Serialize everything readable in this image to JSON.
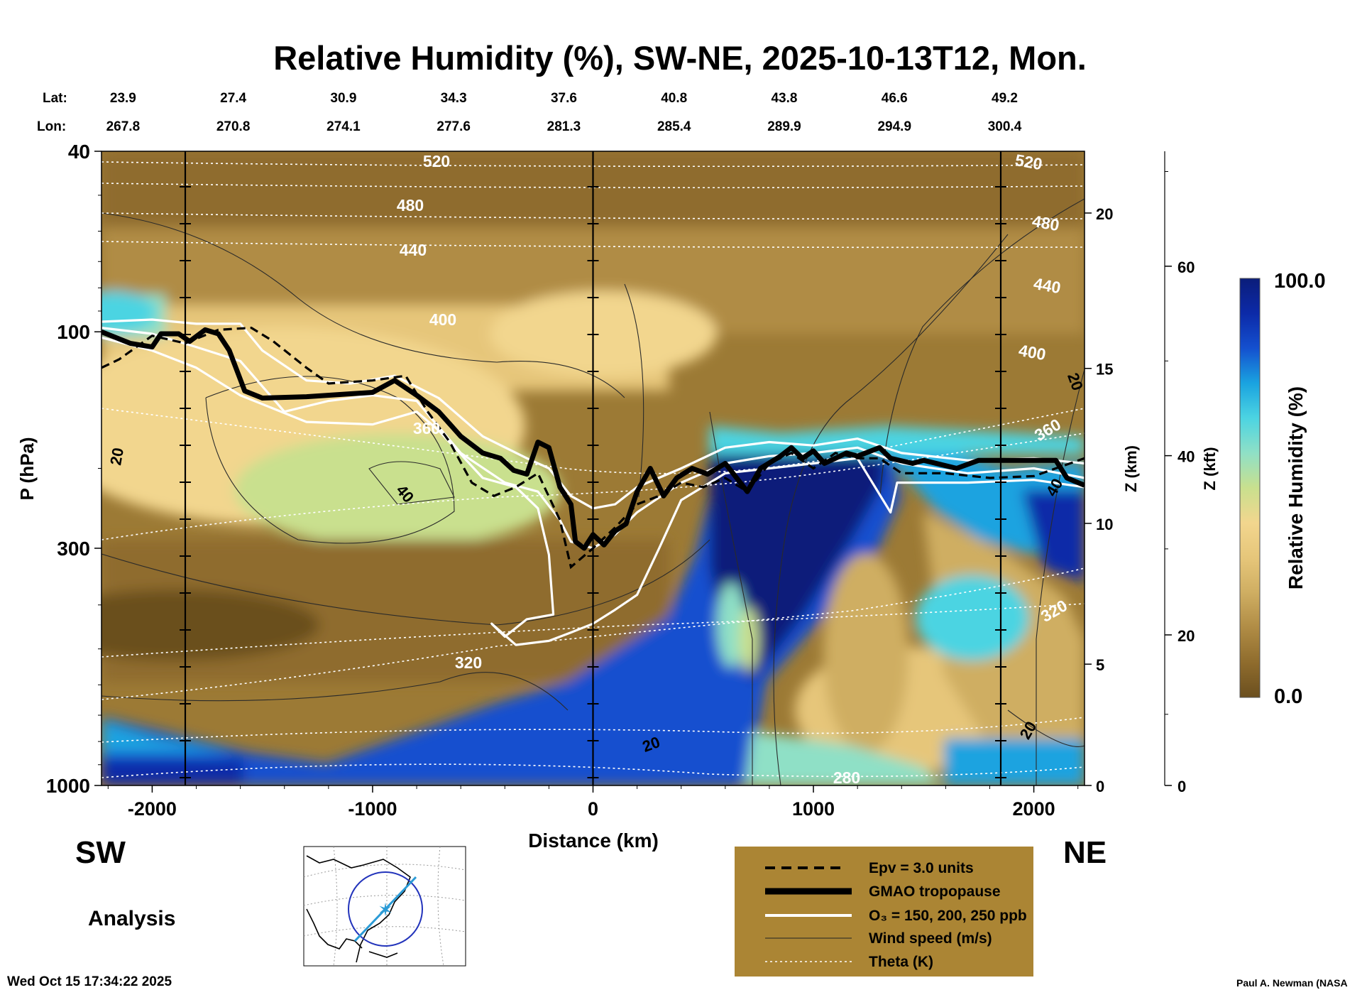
{
  "chart_data": {
    "type": "heatmap",
    "title": "Relative Humidity (%), SW-NE, 2025-10-13T12, Mon.",
    "xlabel": "Distance (km)",
    "ylabel": "P (hPa)",
    "y2label": "Z (km)",
    "y3label": "Z (kft)",
    "colorbar_label": "Relative Humidity (%)",
    "colorbar_max": "100.0",
    "colorbar_min": "0.0",
    "xlim": [
      -2230,
      2230
    ],
    "ylim": [
      1000,
      40
    ],
    "yscale": "log",
    "x_ticks": [
      -2000,
      -1000,
      0,
      1000,
      2000
    ],
    "x_tick_labels": [
      "-2000",
      "-1000",
      "0",
      "1000",
      "2000"
    ],
    "p_ticks": [
      40,
      100,
      300,
      1000
    ],
    "p_tick_labels": [
      "40",
      "100",
      "300",
      "1000"
    ],
    "z_km_ticks": [
      0,
      5,
      10,
      15,
      20
    ],
    "z_km_tick_labels": [
      "0",
      "5",
      "10",
      "15",
      "20"
    ],
    "z_kft_ticks": [
      0,
      20,
      40,
      60
    ],
    "z_kft_tick_labels": [
      "0",
      "20",
      "40",
      "60"
    ],
    "lat_label": "Lat:",
    "lon_label": "Lon:",
    "lat_values": [
      "23.9",
      "27.4",
      "30.9",
      "34.3",
      "37.6",
      "40.8",
      "43.8",
      "46.6",
      "49.2"
    ],
    "lon_values": [
      "267.8",
      "270.8",
      "274.1",
      "277.6",
      "281.3",
      "285.4",
      "289.9",
      "294.9",
      "300.4"
    ],
    "theta_levels": [
      280,
      320,
      360,
      400,
      440,
      480,
      520
    ],
    "theta_labels": [
      "520",
      "480",
      "440",
      "400",
      "360",
      "320",
      "280",
      "520",
      "480",
      "440",
      "400",
      "360",
      "320"
    ],
    "wind_labels": [
      "20",
      "40",
      "20",
      "20",
      "20",
      "40"
    ],
    "tropopause": [
      [
        -2230,
        100
      ],
      [
        -2100,
        106
      ],
      [
        -2000,
        108
      ],
      [
        -1960,
        101
      ],
      [
        -1880,
        101
      ],
      [
        -1830,
        105
      ],
      [
        -1760,
        99
      ],
      [
        -1700,
        101
      ],
      [
        -1650,
        110
      ],
      [
        -1580,
        135
      ],
      [
        -1500,
        140
      ],
      [
        -1300,
        139
      ],
      [
        -1100,
        137
      ],
      [
        -1000,
        136
      ],
      [
        -900,
        128
      ],
      [
        -800,
        138
      ],
      [
        -700,
        150
      ],
      [
        -600,
        170
      ],
      [
        -500,
        185
      ],
      [
        -420,
        190
      ],
      [
        -360,
        202
      ],
      [
        -300,
        206
      ],
      [
        -250,
        175
      ],
      [
        -200,
        180
      ],
      [
        -150,
        220
      ],
      [
        -100,
        240
      ],
      [
        -80,
        290
      ],
      [
        -40,
        300
      ],
      [
        0,
        280
      ],
      [
        50,
        295
      ],
      [
        100,
        275
      ],
      [
        150,
        265
      ],
      [
        200,
        225
      ],
      [
        260,
        200
      ],
      [
        320,
        230
      ],
      [
        380,
        210
      ],
      [
        450,
        200
      ],
      [
        520,
        206
      ],
      [
        600,
        195
      ],
      [
        700,
        225
      ],
      [
        760,
        200
      ],
      [
        850,
        188
      ],
      [
        900,
        180
      ],
      [
        950,
        190
      ],
      [
        1000,
        183
      ],
      [
        1050,
        195
      ],
      [
        1100,
        190
      ],
      [
        1150,
        185
      ],
      [
        1200,
        188
      ],
      [
        1300,
        180
      ],
      [
        1350,
        190
      ],
      [
        1450,
        195
      ],
      [
        1500,
        192
      ],
      [
        1650,
        200
      ],
      [
        1750,
        192
      ],
      [
        2000,
        192
      ],
      [
        2100,
        192
      ],
      [
        2150,
        210
      ],
      [
        2230,
        218
      ]
    ],
    "ozone_contours": [
      [
        [
          -2230,
          95
        ],
        [
          -2000,
          94
        ],
        [
          -1800,
          96
        ],
        [
          -1600,
          96
        ],
        [
          -1500,
          110
        ],
        [
          -1300,
          128
        ],
        [
          -1100,
          130
        ],
        [
          -900,
          125
        ],
        [
          -700,
          140
        ],
        [
          -500,
          170
        ],
        [
          -300,
          190
        ],
        [
          -200,
          200
        ],
        [
          -100,
          230
        ],
        [
          0,
          245
        ],
        [
          100,
          240
        ],
        [
          200,
          220
        ],
        [
          400,
          200
        ],
        [
          600,
          180
        ],
        [
          800,
          175
        ],
        [
          1000,
          178
        ],
        [
          1200,
          172
        ],
        [
          1400,
          185
        ],
        [
          1700,
          192
        ],
        [
          2000,
          190
        ],
        [
          2230,
          195
        ]
      ],
      [
        [
          -2230,
          98
        ],
        [
          -2000,
          101
        ],
        [
          -1800,
          108
        ],
        [
          -1600,
          116
        ],
        [
          -1400,
          150
        ],
        [
          -1200,
          142
        ],
        [
          -1000,
          138
        ],
        [
          -800,
          142
        ],
        [
          -600,
          185
        ],
        [
          -400,
          215
        ],
        [
          -250,
          225
        ],
        [
          -150,
          260
        ],
        [
          -100,
          290
        ],
        [
          0,
          300
        ],
        [
          100,
          280
        ],
        [
          200,
          250
        ],
        [
          400,
          215
        ],
        [
          600,
          195
        ],
        [
          800,
          188
        ],
        [
          1000,
          185
        ],
        [
          1200,
          180
        ],
        [
          1400,
          195
        ],
        [
          1700,
          205
        ],
        [
          2000,
          200
        ],
        [
          2230,
          210
        ]
      ],
      [
        [
          -2230,
          103
        ],
        [
          -2000,
          110
        ],
        [
          -1800,
          120
        ],
        [
          -1600,
          138
        ],
        [
          -1300,
          158
        ],
        [
          -1000,
          160
        ],
        [
          -800,
          150
        ],
        [
          -700,
          165
        ],
        [
          -500,
          210
        ],
        [
          -350,
          220
        ],
        [
          -250,
          245
        ],
        [
          -200,
          310
        ],
        [
          -180,
          420
        ],
        [
          -300,
          430
        ],
        [
          -400,
          470
        ],
        [
          -460,
          440
        ],
        [
          -350,
          490
        ],
        [
          -200,
          480
        ],
        [
          -100,
          460
        ],
        [
          0,
          440
        ],
        [
          100,
          410
        ],
        [
          200,
          380
        ],
        [
          300,
          300
        ],
        [
          400,
          235
        ],
        [
          600,
          205
        ],
        [
          800,
          200
        ],
        [
          1000,
          195
        ],
        [
          1200,
          190
        ],
        [
          1350,
          250
        ],
        [
          1380,
          215
        ],
        [
          1500,
          215
        ],
        [
          1700,
          215
        ],
        [
          2000,
          212
        ],
        [
          2230,
          220
        ]
      ]
    ],
    "epv_contour": [
      [
        -2230,
        120
      ],
      [
        -2150,
        115
      ],
      [
        -2000,
        102
      ],
      [
        -1850,
        106
      ],
      [
        -1700,
        99
      ],
      [
        -1550,
        98
      ],
      [
        -1450,
        105
      ],
      [
        -1300,
        120
      ],
      [
        -1200,
        130
      ],
      [
        -1000,
        128
      ],
      [
        -850,
        125
      ],
      [
        -750,
        150
      ],
      [
        -650,
        175
      ],
      [
        -550,
        215
      ],
      [
        -450,
        230
      ],
      [
        -350,
        220
      ],
      [
        -250,
        205
      ],
      [
        -150,
        260
      ],
      [
        -100,
        330
      ],
      [
        0,
        300
      ],
      [
        100,
        270
      ],
      [
        200,
        240
      ],
      [
        300,
        230
      ],
      [
        400,
        215
      ],
      [
        500,
        220
      ],
      [
        600,
        210
      ],
      [
        700,
        225
      ],
      [
        800,
        195
      ],
      [
        900,
        185
      ],
      [
        1000,
        200
      ],
      [
        1100,
        185
      ],
      [
        1200,
        190
      ],
      [
        1300,
        190
      ],
      [
        1400,
        205
      ],
      [
        1600,
        205
      ],
      [
        1800,
        210
      ],
      [
        2000,
        208
      ],
      [
        2230,
        190
      ]
    ],
    "legend_items": [
      "Epv = 3.0 units",
      "GMAO tropopause",
      "O₃ = 150, 200, 250 ppb",
      "Wind speed (m/s)",
      "Theta (K)"
    ],
    "grid": false
  },
  "colors": {
    "colormap": [
      "#6b4f1f",
      "#8f6c2d",
      "#b08c45",
      "#cfae62",
      "#e6c67a",
      "#f2d68e",
      "#c9e08e",
      "#8fe0c6",
      "#4cd4e2",
      "#1aa3e0",
      "#1450cf",
      "#0c2aa8",
      "#0b1d7a"
    ],
    "legend_bg": "#ab8534",
    "tropopause": "#000000",
    "ozone": "#ffffff",
    "theta": "#ffffff",
    "wind": "#2a2a2a",
    "map_route": "#2b9bd6",
    "map_circle": "#2233bb"
  },
  "labels": {
    "sw": "SW",
    "ne": "NE",
    "analysis": "Analysis",
    "timestamp": "Wed Oct 15 17:34:22 2025",
    "credit": "Paul A. Newman (NASA"
  }
}
